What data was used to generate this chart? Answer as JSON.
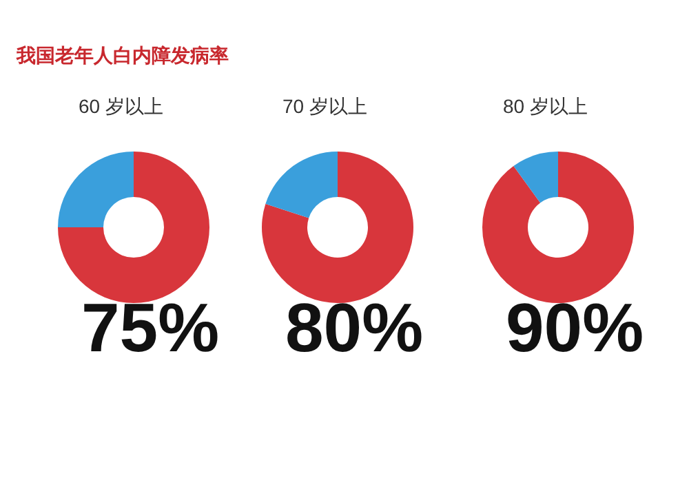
{
  "chart_data": [
    {
      "type": "donut",
      "title": "60 岁以上",
      "annotations": [
        "我国老年人白内障发病率"
      ],
      "categories": [
        null,
        null
      ],
      "values": [
        75,
        25
      ],
      "colors": [
        "#d8363c",
        "#3a9fdc"
      ],
      "value_labels": [
        "75%",
        null
      ]
    },
    {
      "type": "donut",
      "title": "70 岁以上",
      "categories": [
        null,
        null
      ],
      "values": [
        80,
        20
      ],
      "colors": [
        "#d8363c",
        "#3a9fdc"
      ],
      "value_labels": [
        "80%",
        null
      ]
    },
    {
      "type": "donut",
      "title": "80 岁以上",
      "categories": [
        null,
        null
      ],
      "values": [
        90,
        10
      ],
      "colors": [
        "#d8363c",
        "#3a9fdc"
      ],
      "value_labels": [
        "90%",
        null
      ]
    }
  ]
}
